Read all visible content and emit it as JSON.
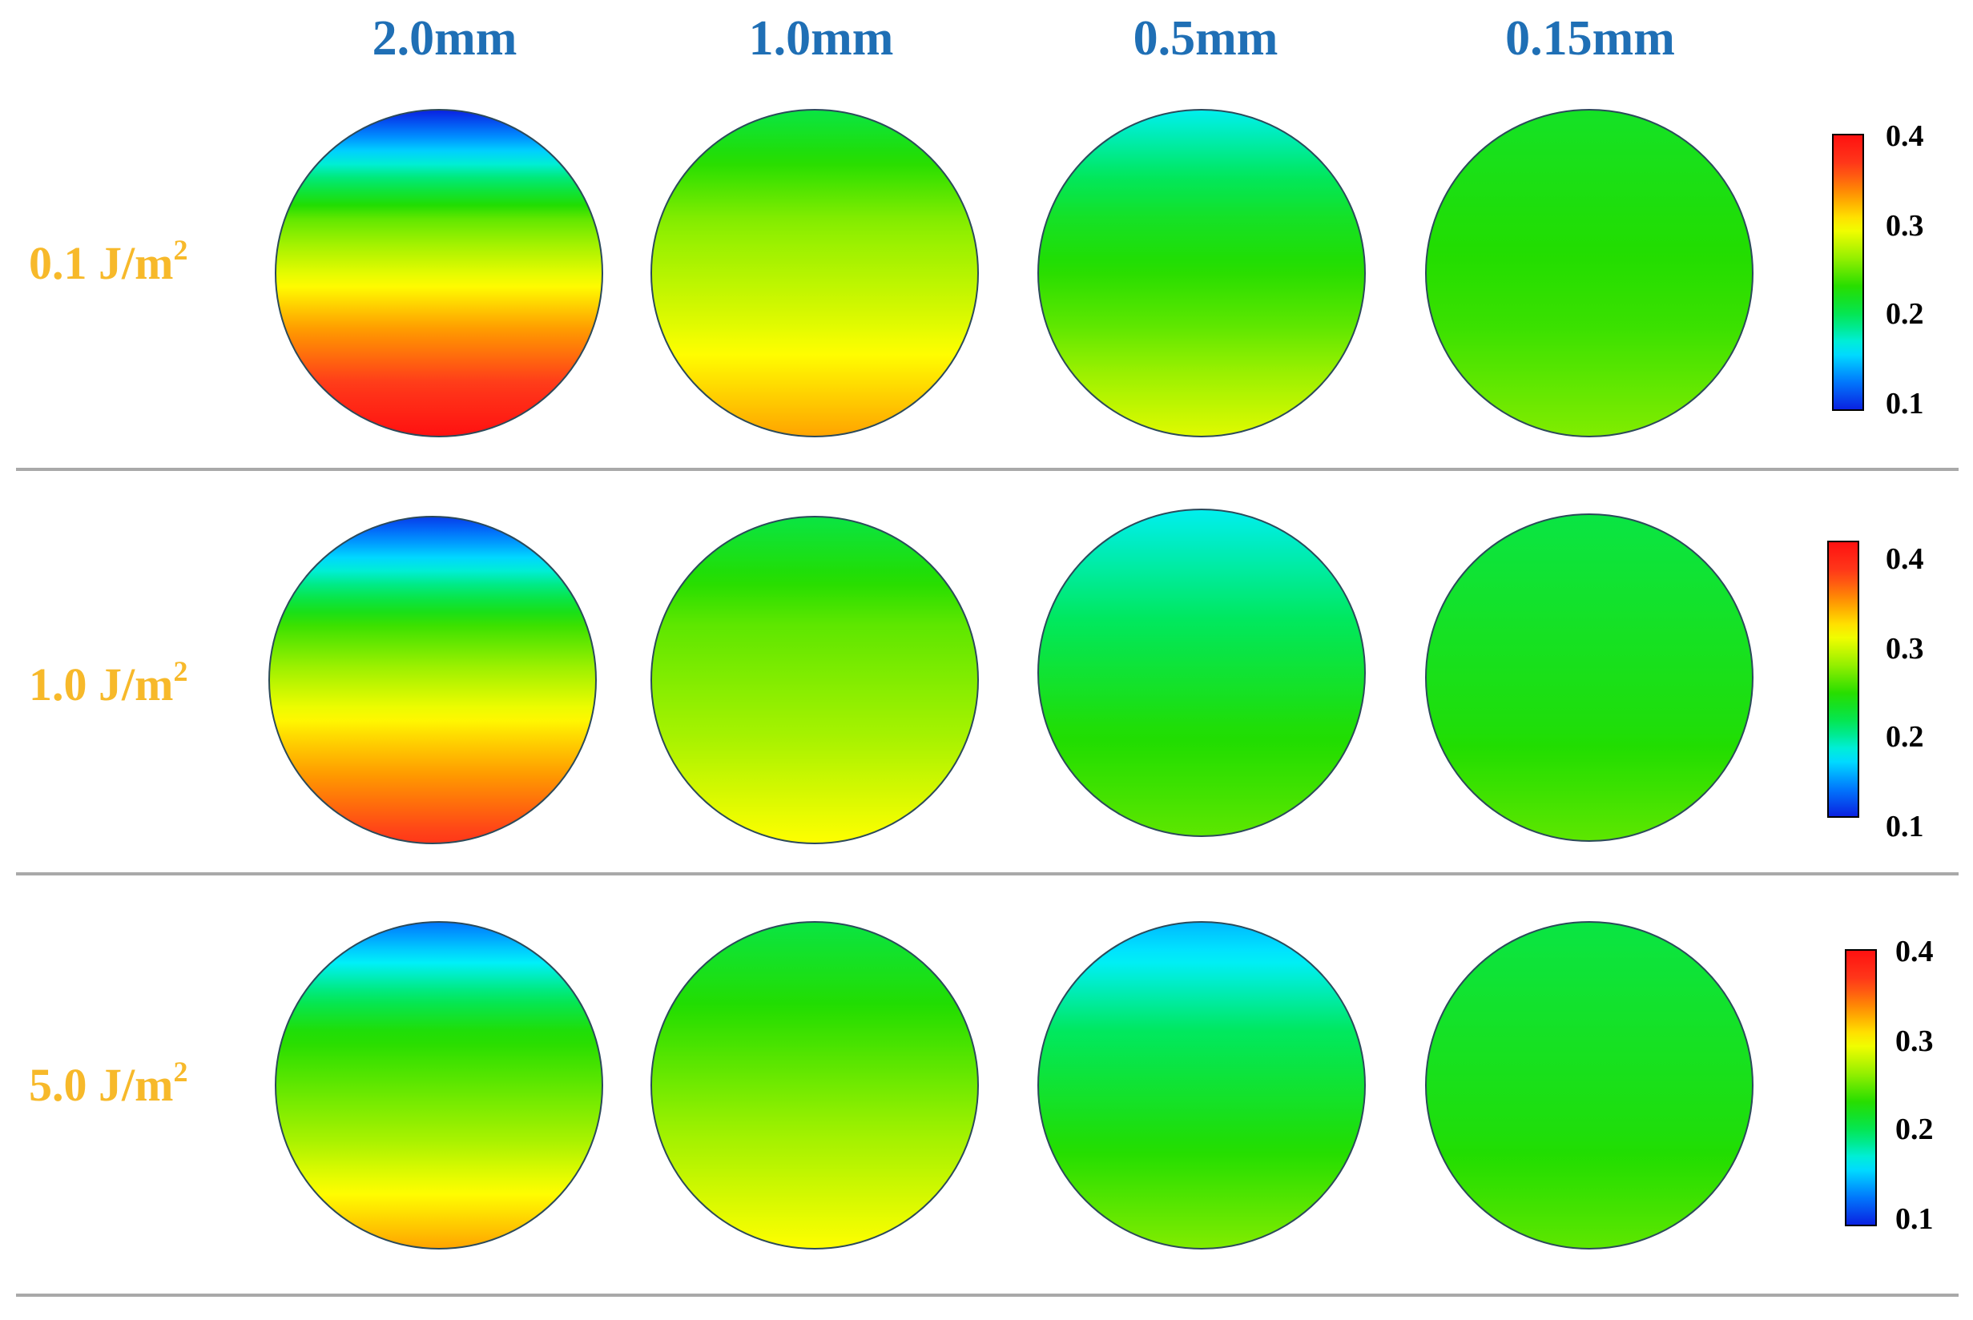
{
  "figure": {
    "columns": [
      "2.0mm",
      "1.0mm",
      "0.5mm",
      "0.15mm"
    ],
    "rows": [
      {
        "value": "0.1",
        "unit": "J/m",
        "exponent": "2"
      },
      {
        "value": "1.0",
        "unit": "J/m",
        "exponent": "2"
      },
      {
        "value": "5.0",
        "unit": "J/m",
        "exponent": "2"
      }
    ],
    "colorbar": {
      "ticks": [
        "0.4",
        "0.3",
        "0.2",
        "0.1"
      ],
      "range": [
        0.1,
        0.4
      ],
      "colormap": [
        "#0a1fe0",
        "#0080ff",
        "#00f0ff",
        "#00e860",
        "#22dd00",
        "#99f000",
        "#ffff00",
        "#ff9900",
        "#ff3a1a",
        "#ff1010"
      ]
    },
    "fields": [
      [
        {
          "top": 0.1,
          "bottom": 0.4,
          "mid": [
            0.25,
            0.33
          ]
        },
        {
          "top": 0.21,
          "bottom": 0.33,
          "mid": [
            0.26,
            0.29
          ]
        },
        {
          "top": 0.17,
          "bottom": 0.29,
          "mid": [
            0.22,
            0.25
          ]
        },
        {
          "top": 0.22,
          "bottom": 0.26,
          "mid": [
            0.23,
            0.24
          ]
        }
      ],
      [
        {
          "top": 0.11,
          "bottom": 0.37,
          "mid": [
            0.24,
            0.31
          ]
        },
        {
          "top": 0.21,
          "bottom": 0.3,
          "mid": [
            0.25,
            0.27
          ]
        },
        {
          "top": 0.17,
          "bottom": 0.25,
          "mid": [
            0.2,
            0.23
          ]
        },
        {
          "top": 0.21,
          "bottom": 0.25,
          "mid": [
            0.22,
            0.23
          ]
        }
      ],
      [
        {
          "top": 0.13,
          "bottom": 0.33,
          "mid": [
            0.23,
            0.27
          ]
        },
        {
          "top": 0.21,
          "bottom": 0.3,
          "mid": [
            0.24,
            0.27
          ]
        },
        {
          "top": 0.15,
          "bottom": 0.26,
          "mid": [
            0.2,
            0.23
          ]
        },
        {
          "top": 0.21,
          "bottom": 0.25,
          "mid": [
            0.22,
            0.23
          ]
        }
      ]
    ]
  }
}
